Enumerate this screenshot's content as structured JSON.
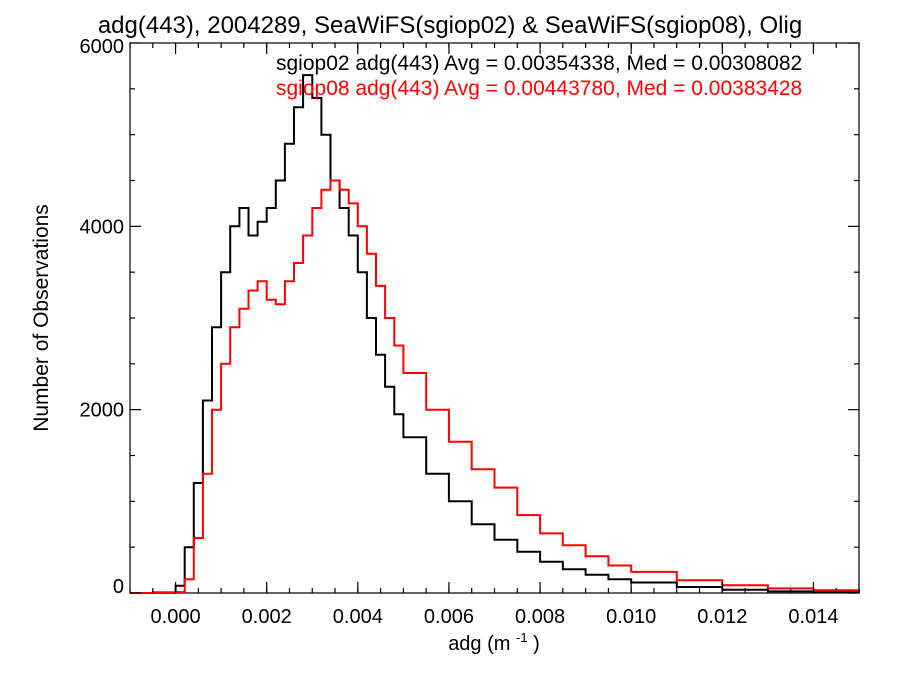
{
  "chart_data": {
    "type": "line",
    "title": "adg(443), 2004289, SeaWiFS(sgiop02) & SeaWiFS(sgiop08), Olig",
    "xlabel": "adg (m",
    "xlabel_sup": "-1",
    "xlabel_close": ")",
    "ylabel": "Number of Observations",
    "xlim": [
      -0.001,
      0.015
    ],
    "ylim": [
      0,
      6000
    ],
    "xticks": [
      0.0,
      0.002,
      0.004,
      0.006,
      0.008,
      0.01,
      0.012,
      0.014
    ],
    "xtick_labels": [
      "0.000",
      "0.002",
      "0.004",
      "0.006",
      "0.008",
      "0.010",
      "0.012",
      "0.014"
    ],
    "yticks": [
      0,
      2000,
      4000,
      6000
    ],
    "ytick_labels": [
      "0",
      "2000",
      "4000",
      "6000"
    ],
    "grid": false,
    "legend_position": "top-right",
    "annotations": [
      "sgiop02 adg(443) Avg = 0.00354338, Med = 0.00308082",
      "sgiop08 adg(443) Avg = 0.00443780, Med = 0.00383428"
    ],
    "colors": {
      "sgiop02": "#000000",
      "sgiop08": "#ff0000",
      "axes": "#000000",
      "background": "#ffffff"
    },
    "x": [
      -0.001,
      -0.0005,
      0.0,
      0.0002,
      0.0004,
      0.0006,
      0.0008,
      0.001,
      0.0012,
      0.0014,
      0.0016,
      0.0018,
      0.002,
      0.0022,
      0.0024,
      0.0026,
      0.0028,
      0.003,
      0.0032,
      0.0034,
      0.0036,
      0.0038,
      0.004,
      0.0042,
      0.0044,
      0.0046,
      0.0048,
      0.005,
      0.0055,
      0.006,
      0.0065,
      0.007,
      0.0075,
      0.008,
      0.0085,
      0.009,
      0.0095,
      0.01,
      0.011,
      0.012,
      0.013,
      0.014,
      0.015
    ],
    "series": [
      {
        "values": [
          0,
          5,
          80,
          500,
          1200,
          2100,
          2900,
          3500,
          4000,
          4200,
          3900,
          4050,
          4200,
          4500,
          4900,
          5300,
          5650,
          5400,
          5000,
          4500,
          4200,
          3900,
          3500,
          3000,
          2600,
          2250,
          1950,
          1700,
          1300,
          1000,
          750,
          580,
          450,
          340,
          260,
          200,
          150,
          115,
          65,
          35,
          18,
          8,
          4
        ]
      },
      {
        "values": [
          0,
          0,
          10,
          150,
          600,
          1300,
          2000,
          2500,
          2900,
          3100,
          3300,
          3400,
          3200,
          3150,
          3400,
          3600,
          3900,
          4200,
          4400,
          4500,
          4400,
          4250,
          4000,
          3700,
          3350,
          3000,
          2700,
          2400,
          2000,
          1650,
          1350,
          1150,
          850,
          650,
          520,
          400,
          300,
          230,
          140,
          85,
          50,
          30,
          18
        ]
      }
    ]
  }
}
